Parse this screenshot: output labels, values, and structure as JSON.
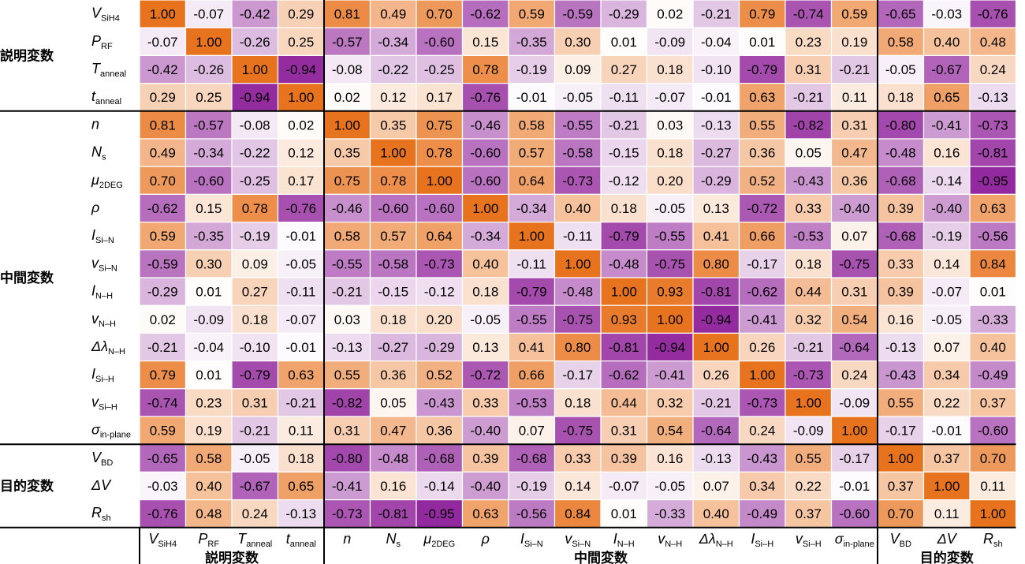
{
  "chart_data": {
    "type": "heatmap",
    "colors": {
      "positive": "#E8731E",
      "negative": "#8E1F99",
      "neutral": "#FFFFFF",
      "grid_line": "#FFFFFF",
      "group_line": "#000000"
    },
    "variables": [
      {
        "main": "V",
        "sub": "SiH4"
      },
      {
        "main": "P",
        "sub": "RF"
      },
      {
        "main": "T",
        "sub": "anneal"
      },
      {
        "main": "t",
        "sub": "anneal"
      },
      {
        "main": "n",
        "sub": ""
      },
      {
        "main": "N",
        "sub": "s"
      },
      {
        "main": "μ",
        "sub": "2DEG"
      },
      {
        "main": "ρ",
        "sub": ""
      },
      {
        "main": "I",
        "sub": "Si–N"
      },
      {
        "main": "v",
        "sub": "Si–N"
      },
      {
        "main": "I",
        "sub": "N–H"
      },
      {
        "main": "v",
        "sub": "N–H"
      },
      {
        "main": "Δλ",
        "sub": "N–H"
      },
      {
        "main": "I",
        "sub": "Si–H"
      },
      {
        "main": "v",
        "sub": "Si–H"
      },
      {
        "main": "σ",
        "sub": "in-plane"
      },
      {
        "main": "V",
        "sub": "BD"
      },
      {
        "main": "ΔV",
        "sub": ""
      },
      {
        "main": "R",
        "sub": "sh"
      }
    ],
    "groups": [
      {
        "label": "説明変数",
        "start": 0,
        "end": 3
      },
      {
        "label": "中間変数",
        "start": 4,
        "end": 15
      },
      {
        "label": "目的変数",
        "start": 16,
        "end": 18
      }
    ],
    "values": [
      [
        1.0,
        -0.07,
        -0.42,
        0.29,
        0.81,
        0.49,
        0.7,
        -0.62,
        0.59,
        -0.59,
        -0.29,
        0.02,
        -0.21,
        0.79,
        -0.74,
        0.59,
        -0.65,
        -0.03,
        -0.76
      ],
      [
        -0.07,
        1.0,
        -0.26,
        0.25,
        -0.57,
        -0.34,
        -0.6,
        0.15,
        -0.35,
        0.3,
        0.01,
        -0.09,
        -0.04,
        0.01,
        0.23,
        0.19,
        0.58,
        0.4,
        0.48
      ],
      [
        -0.42,
        -0.26,
        1.0,
        -0.94,
        -0.08,
        -0.22,
        -0.25,
        0.78,
        -0.19,
        0.09,
        0.27,
        0.18,
        -0.1,
        -0.79,
        0.31,
        -0.21,
        -0.05,
        -0.67,
        0.24
      ],
      [
        0.29,
        0.25,
        -0.94,
        1.0,
        0.02,
        0.12,
        0.17,
        -0.76,
        -0.01,
        -0.05,
        -0.11,
        -0.07,
        -0.01,
        0.63,
        -0.21,
        0.11,
        0.18,
        0.65,
        -0.13
      ],
      [
        0.81,
        -0.57,
        -0.08,
        0.02,
        1.0,
        0.35,
        0.75,
        -0.46,
        0.58,
        -0.55,
        -0.21,
        0.03,
        -0.13,
        0.55,
        -0.82,
        0.31,
        -0.8,
        -0.41,
        -0.73
      ],
      [
        0.49,
        -0.34,
        -0.22,
        0.12,
        0.35,
        1.0,
        0.78,
        -0.6,
        0.57,
        -0.58,
        -0.15,
        0.18,
        -0.27,
        0.36,
        0.05,
        0.47,
        -0.48,
        0.16,
        -0.81
      ],
      [
        0.7,
        -0.6,
        -0.25,
        0.17,
        0.75,
        0.78,
        1.0,
        -0.6,
        0.64,
        -0.73,
        -0.12,
        0.2,
        -0.29,
        0.52,
        -0.43,
        0.36,
        -0.68,
        -0.14,
        -0.95
      ],
      [
        -0.62,
        0.15,
        0.78,
        -0.76,
        -0.46,
        -0.6,
        -0.6,
        1.0,
        -0.34,
        0.4,
        0.18,
        -0.05,
        0.13,
        -0.72,
        0.33,
        -0.4,
        0.39,
        -0.4,
        0.63
      ],
      [
        0.59,
        -0.35,
        -0.19,
        -0.01,
        0.58,
        0.57,
        0.64,
        -0.34,
        1.0,
        -0.11,
        -0.79,
        -0.55,
        0.41,
        0.66,
        -0.53,
        0.07,
        -0.68,
        -0.19,
        -0.56
      ],
      [
        -0.59,
        0.3,
        0.09,
        -0.05,
        -0.55,
        -0.58,
        -0.73,
        0.4,
        -0.11,
        1.0,
        -0.48,
        -0.75,
        0.8,
        -0.17,
        0.18,
        -0.75,
        0.33,
        0.14,
        0.84
      ],
      [
        -0.29,
        0.01,
        0.27,
        -0.11,
        -0.21,
        -0.15,
        -0.12,
        0.18,
        -0.79,
        -0.48,
        1.0,
        0.93,
        -0.81,
        -0.62,
        0.44,
        0.31,
        0.39,
        -0.07,
        0.01
      ],
      [
        0.02,
        -0.09,
        0.18,
        -0.07,
        0.03,
        0.18,
        0.2,
        -0.05,
        -0.55,
        -0.75,
        0.93,
        1.0,
        -0.94,
        -0.41,
        0.32,
        0.54,
        0.16,
        -0.05,
        -0.33
      ],
      [
        -0.21,
        -0.04,
        -0.1,
        -0.01,
        -0.13,
        -0.27,
        -0.29,
        0.13,
        0.41,
        0.8,
        -0.81,
        -0.94,
        1.0,
        0.26,
        -0.21,
        -0.64,
        -0.13,
        0.07,
        0.4
      ],
      [
        0.79,
        0.01,
        -0.79,
        0.63,
        0.55,
        0.36,
        0.52,
        -0.72,
        0.66,
        -0.17,
        -0.62,
        -0.41,
        0.26,
        1.0,
        -0.73,
        0.24,
        -0.43,
        0.34,
        -0.49
      ],
      [
        -0.74,
        0.23,
        0.31,
        -0.21,
        -0.82,
        0.05,
        -0.43,
        0.33,
        -0.53,
        0.18,
        0.44,
        0.32,
        -0.21,
        -0.73,
        1.0,
        -0.09,
        0.55,
        0.22,
        0.37
      ],
      [
        0.59,
        0.19,
        -0.21,
        0.11,
        0.31,
        0.47,
        0.36,
        -0.4,
        0.07,
        -0.75,
        0.31,
        0.54,
        -0.64,
        0.24,
        -0.09,
        1.0,
        -0.17,
        -0.01,
        -0.6
      ],
      [
        -0.65,
        0.58,
        -0.05,
        0.18,
        -0.8,
        -0.48,
        -0.68,
        0.39,
        -0.68,
        0.33,
        0.39,
        0.16,
        -0.13,
        -0.43,
        0.55,
        -0.17,
        1.0,
        0.37,
        0.7
      ],
      [
        -0.03,
        0.4,
        -0.67,
        0.65,
        -0.41,
        0.16,
        -0.14,
        -0.4,
        -0.19,
        0.14,
        -0.07,
        -0.05,
        0.07,
        0.34,
        0.22,
        -0.01,
        0.37,
        1.0,
        0.11
      ],
      [
        -0.76,
        0.48,
        0.24,
        -0.13,
        -0.73,
        -0.81,
        -0.95,
        0.63,
        -0.56,
        0.84,
        0.01,
        -0.33,
        0.4,
        -0.49,
        0.37,
        -0.6,
        0.7,
        0.11,
        1.0
      ]
    ]
  }
}
